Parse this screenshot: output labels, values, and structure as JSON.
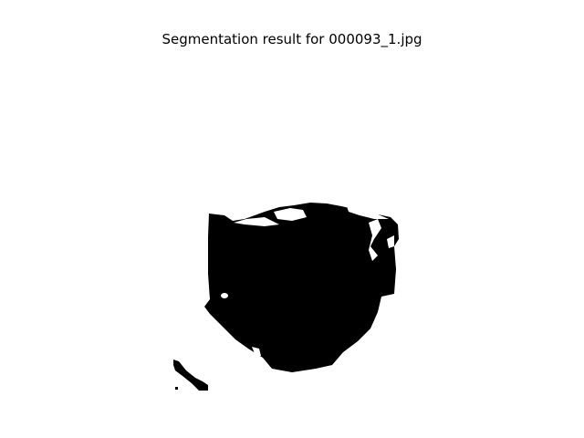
{
  "figure": {
    "title": "Segmentation result for 000093_1.jpg"
  },
  "colors": {
    "background": "#ffffff",
    "foreground_mask": "#000000",
    "mask_background": "#ffffff"
  }
}
